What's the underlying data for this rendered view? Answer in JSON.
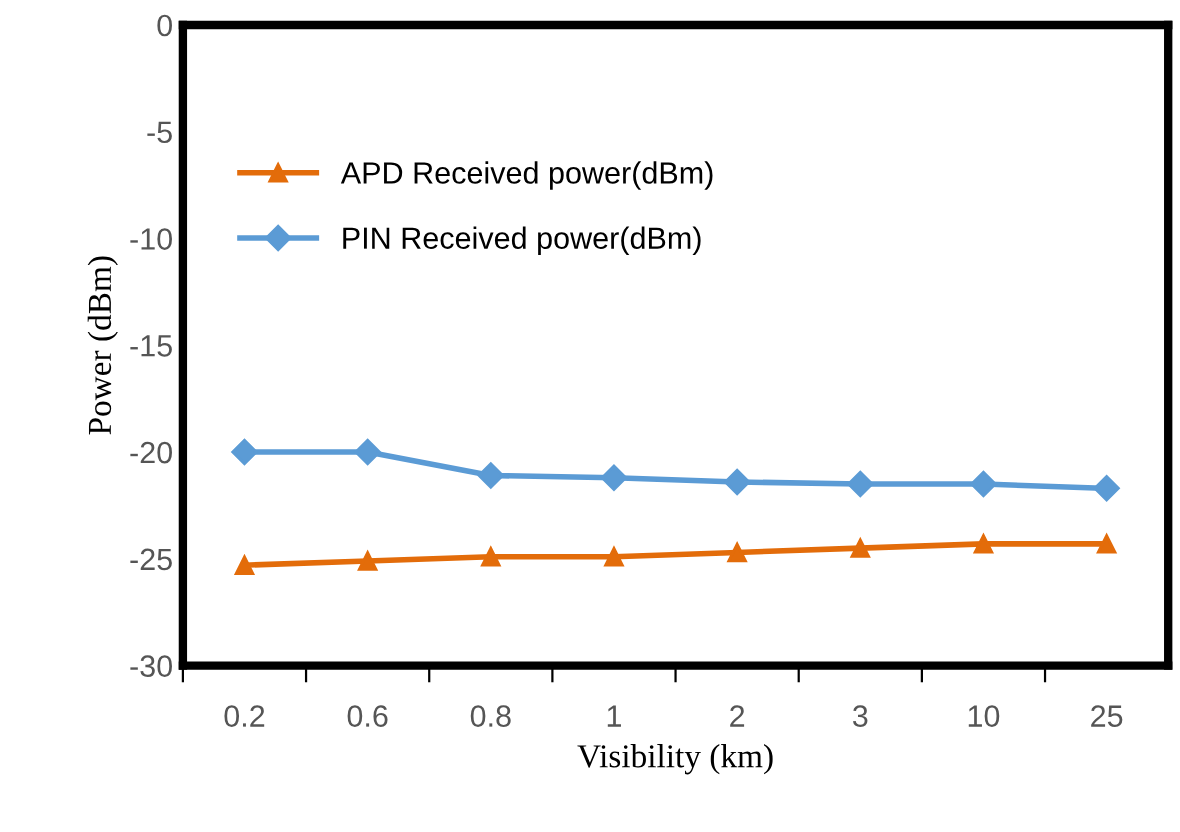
{
  "chart_data": {
    "type": "line",
    "xlabel": "Visibility (km)",
    "ylabel": "Power (dBm)",
    "categories": [
      "0.2",
      "0.6",
      "0.8",
      "1",
      "2",
      "3",
      "10",
      "25"
    ],
    "series": [
      {
        "name": "APD Received power(dBm)",
        "color": "#e36c0a",
        "marker": "triangle",
        "values": [
          -25.3,
          -25.1,
          -24.9,
          -24.9,
          -24.7,
          -24.5,
          -24.3,
          -24.3
        ]
      },
      {
        "name": "PIN Received power(dBm)",
        "color": "#5b9bd5",
        "marker": "diamond",
        "values": [
          -20.0,
          -20.0,
          -21.1,
          -21.2,
          -21.4,
          -21.5,
          -21.5,
          -21.7
        ]
      }
    ],
    "ylim": [
      -30,
      0
    ],
    "yticks": [
      -30,
      -25,
      -20,
      -15,
      -10,
      -5,
      0
    ],
    "grid": false,
    "legend": "top left"
  }
}
